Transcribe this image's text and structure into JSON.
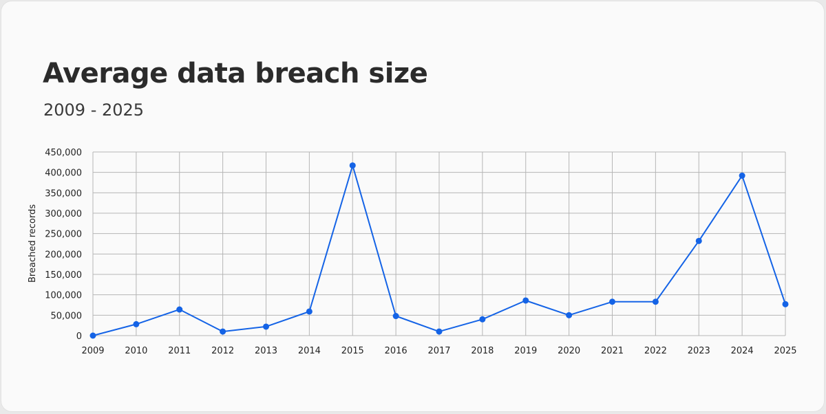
{
  "header": {
    "title": "Average data breach size",
    "subtitle": "2009 - 2025"
  },
  "colors": {
    "line": "#1463e6",
    "grid": "#b5b5b5",
    "background": "#fafafa"
  },
  "chart_data": {
    "type": "line",
    "title": "Average data breach size",
    "subtitle": "2009 - 2025",
    "xlabel": "",
    "ylabel": "Breached records",
    "categories": [
      "2009",
      "2010",
      "2011",
      "2012",
      "2013",
      "2014",
      "2015",
      "2016",
      "2017",
      "2018",
      "2019",
      "2020",
      "2021",
      "2022",
      "2023",
      "2024",
      "2025"
    ],
    "series": [
      {
        "values": [
          0,
          28000,
          64000,
          10000,
          22000,
          59000,
          417000,
          48000,
          10000,
          40000,
          86000,
          50000,
          83000,
          83000,
          232000,
          392000,
          77000
        ]
      }
    ],
    "ylim": [
      0,
      450000
    ],
    "yticks": [
      0,
      50000,
      100000,
      150000,
      200000,
      250000,
      300000,
      350000,
      400000,
      450000
    ],
    "ytick_labels": [
      "0",
      "50,000",
      "100,000",
      "150,000",
      "200,000",
      "250,000",
      "300,000",
      "350,000",
      "400,000",
      "450,000"
    ],
    "grid": true,
    "markers": true,
    "legend": "none"
  }
}
